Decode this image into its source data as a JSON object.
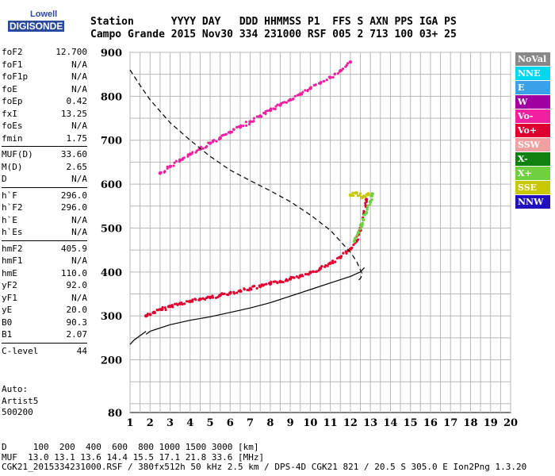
{
  "logo": {
    "line1": "Lowell",
    "line2": "DIGISONDE"
  },
  "header": {
    "row1": "Station      YYYY DAY   DDD HHMMSS P1  FFS S AXN PPS IGA PS",
    "row2": "Campo Grande 2015 Nov30 334 231000 RSF 005 2 713 100 03+ 25"
  },
  "params": {
    "group1": [
      {
        "name": "foF2",
        "value": "12.700"
      },
      {
        "name": "foF1",
        "value": "N/A"
      },
      {
        "name": "foF1p",
        "value": "N/A"
      },
      {
        "name": "foE",
        "value": "N/A"
      },
      {
        "name": "foEp",
        "value": "0.42"
      },
      {
        "name": "fxI",
        "value": "13.25"
      },
      {
        "name": "foEs",
        "value": "N/A"
      },
      {
        "name": "fmin",
        "value": "1.75"
      }
    ],
    "group2": [
      {
        "name": "MUF(D)",
        "value": "33.60"
      },
      {
        "name": "M(D)",
        "value": "2.65"
      },
      {
        "name": "D",
        "value": "N/A"
      }
    ],
    "group3": [
      {
        "name": "h`F",
        "value": "296.0"
      },
      {
        "name": "h`F2",
        "value": "296.0"
      },
      {
        "name": "h`E",
        "value": "N/A"
      },
      {
        "name": "h`Es",
        "value": "N/A"
      }
    ],
    "group4": [
      {
        "name": "hmF2",
        "value": "405.9"
      },
      {
        "name": "hmF1",
        "value": "N/A"
      },
      {
        "name": "hmE",
        "value": "110.0"
      },
      {
        "name": "yF2",
        "value": "92.0"
      },
      {
        "name": "yF1",
        "value": "N/A"
      },
      {
        "name": "yE",
        "value": "20.0"
      },
      {
        "name": "B0",
        "value": "90.3"
      },
      {
        "name": "B1",
        "value": "2.07"
      }
    ],
    "group5": [
      {
        "name": "C-level",
        "value": "44"
      }
    ]
  },
  "auto": {
    "line1": "Auto:",
    "line2": "Artist5",
    "line3": "500200"
  },
  "legend": [
    {
      "label": "NoVal",
      "color": "#888888"
    },
    {
      "label": "NNE",
      "color": "#00d8f0"
    },
    {
      "label": "E",
      "color": "#3aa0e8"
    },
    {
      "label": "W",
      "color": "#a000a0"
    },
    {
      "label": "Vo-",
      "color": "#f020a0"
    },
    {
      "label": "Vo+",
      "color": "#e00030"
    },
    {
      "label": "SSW",
      "color": "#f0a0a0"
    },
    {
      "label": "X-",
      "color": "#108010"
    },
    {
      "label": "X+",
      "color": "#70d040"
    },
    {
      "label": "SSE",
      "color": "#c8c800"
    },
    {
      "label": "NNW",
      "color": "#2010c0"
    }
  ],
  "bottom": {
    "line1": "D     100  200  400  600  800 1000 1500 3000 [km]",
    "line2": "MUF  13.0 13.1 13.6 14.4 15.5 17.1 21.8 33.6 [MHz]",
    "line3": "CGK21_2015334231000.RSF / 380fx512h 50 kHz 2.5 km / DPS-4D CGK21 821 / 20.5 S 305.0 E Ion2Png 1.3.20"
  },
  "chart_data": {
    "type": "scatter",
    "xlim": [
      1,
      20
    ],
    "ylim": [
      80,
      900
    ],
    "x_ticks": [
      1,
      2,
      3,
      4,
      5,
      6,
      7,
      8,
      9,
      10,
      11,
      12,
      13,
      14,
      15,
      16,
      17,
      18,
      19,
      20
    ],
    "y_ticks": [
      80,
      200,
      300,
      400,
      500,
      600,
      700,
      800,
      900
    ],
    "grid": true,
    "series": [
      {
        "name": "Vo+",
        "color": "#e00030",
        "x": [
          1.8,
          2.2,
          2.6,
          3,
          3.5,
          4,
          4.5,
          5,
          5.5,
          6,
          6.5,
          7,
          7.5,
          8,
          8.5,
          9,
          9.5,
          10,
          10.5,
          11,
          11.5,
          12,
          12.3,
          12.5,
          12.7,
          12.8
        ],
        "y": [
          300,
          308,
          315,
          322,
          328,
          333,
          338,
          342,
          347,
          352,
          357,
          362,
          367,
          373,
          378,
          384,
          391,
          399,
          408,
          420,
          433,
          452,
          470,
          495,
          535,
          565
        ]
      },
      {
        "name": "Vo-",
        "color": "#f020a0",
        "x": [
          2.5,
          3,
          3.5,
          4,
          4.5,
          5,
          5.5,
          6,
          6.5,
          7,
          7.5,
          8,
          8.5,
          9,
          9.5,
          10,
          10.5,
          11,
          11.5,
          12
        ],
        "y": [
          625,
          640,
          655,
          668,
          680,
          693,
          705,
          718,
          730,
          742,
          755,
          768,
          780,
          792,
          805,
          818,
          830,
          843,
          858,
          878
        ]
      },
      {
        "name": "X+",
        "color": "#70d040",
        "x": [
          12.2,
          12.4,
          12.6,
          12.8,
          13.0,
          13.1
        ],
        "y": [
          470,
          490,
          510,
          535,
          560,
          578
        ]
      },
      {
        "name": "SSE",
        "color": "#c8c800",
        "x": [
          12,
          12.3,
          12.6,
          12.9
        ],
        "y": [
          575,
          580,
          570,
          578
        ]
      }
    ],
    "lines": [
      {
        "name": "true-height",
        "style": "solid",
        "x": [
          1.8,
          2,
          3,
          4,
          5,
          6,
          7,
          8,
          9,
          10,
          11,
          12,
          12.5,
          12.7
        ],
        "y": [
          258,
          265,
          280,
          290,
          298,
          308,
          318,
          330,
          345,
          360,
          375,
          390,
          400,
          410
        ]
      },
      {
        "name": "model",
        "style": "dashed",
        "x": [
          1,
          1.5,
          2,
          3,
          4,
          5,
          6,
          7,
          8,
          9,
          10,
          11,
          11.5,
          12,
          12.3,
          12.5,
          12.6,
          12.5,
          12.3
        ],
        "y": [
          860,
          825,
          792,
          740,
          700,
          663,
          632,
          608,
          585,
          560,
          530,
          495,
          470,
          445,
          425,
          405,
          395,
          385,
          378
        ]
      },
      {
        "name": "underside",
        "style": "solid",
        "x": [
          1,
          1.2,
          1.5,
          1.8
        ],
        "y": [
          235,
          245,
          255,
          265
        ]
      }
    ]
  }
}
